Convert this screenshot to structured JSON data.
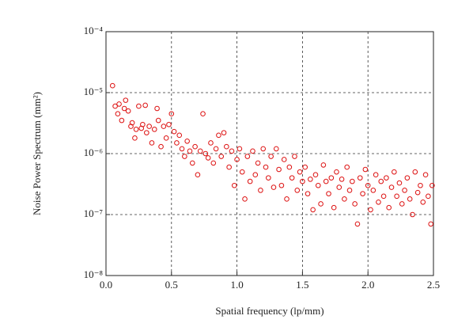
{
  "chart_data": {
    "type": "scatter",
    "xlabel": "Spatial frequency (lp/mm)",
    "ylabel": "Noise Power Spectrum (mm²)",
    "log_y": true,
    "grid": true,
    "xlim": [
      0,
      2.5
    ],
    "ylim": [
      1e-08,
      0.0001
    ],
    "xticks": [
      {
        "value": 0,
        "label": "0.0"
      },
      0.5,
      {
        "value": 1,
        "label": "1.0"
      },
      1.5,
      {
        "value": 2,
        "label": "2.0"
      },
      2.5
    ],
    "yticks": [
      {
        "value": 1e-08,
        "label": "10⁻⁸"
      },
      {
        "value": 1e-07,
        "label": "10⁻⁷"
      },
      {
        "value": 1e-06,
        "label": "10⁻⁶"
      },
      {
        "value": 1e-05,
        "label": "10⁻⁵"
      },
      {
        "value": 0.0001,
        "label": "10⁻⁴"
      }
    ],
    "series": [
      {
        "color": "#dd1111",
        "x": [
          0.05,
          0.07,
          0.09,
          0.1,
          0.12,
          0.14,
          0.15,
          0.17,
          0.19,
          0.2,
          0.22,
          0.23,
          0.25,
          0.27,
          0.28,
          0.3,
          0.31,
          0.33,
          0.35,
          0.37,
          0.39,
          0.4,
          0.42,
          0.44,
          0.46,
          0.48,
          0.5,
          0.52,
          0.54,
          0.56,
          0.58,
          0.6,
          0.62,
          0.64,
          0.66,
          0.68,
          0.7,
          0.72,
          0.74,
          0.76,
          0.78,
          0.8,
          0.82,
          0.84,
          0.86,
          0.88,
          0.9,
          0.92,
          0.94,
          0.96,
          0.98,
          1.0,
          1.02,
          1.04,
          1.06,
          1.08,
          1.1,
          1.12,
          1.14,
          1.16,
          1.18,
          1.2,
          1.22,
          1.24,
          1.26,
          1.28,
          1.3,
          1.32,
          1.34,
          1.36,
          1.38,
          1.4,
          1.42,
          1.44,
          1.46,
          1.48,
          1.5,
          1.52,
          1.54,
          1.56,
          1.58,
          1.6,
          1.62,
          1.64,
          1.66,
          1.68,
          1.7,
          1.72,
          1.74,
          1.76,
          1.78,
          1.8,
          1.82,
          1.84,
          1.86,
          1.88,
          1.9,
          1.92,
          1.94,
          1.96,
          1.98,
          2.0,
          2.02,
          2.04,
          2.06,
          2.08,
          2.1,
          2.12,
          2.14,
          2.16,
          2.18,
          2.2,
          2.22,
          2.24,
          2.26,
          2.28,
          2.3,
          2.32,
          2.34,
          2.36,
          2.38,
          2.4,
          2.42,
          2.44,
          2.46,
          2.48,
          2.49
        ],
        "values": [
          1.3e-05,
          6e-06,
          4.5e-06,
          6.5e-06,
          3.5e-06,
          5.5e-06,
          7.5e-06,
          5e-06,
          2.8e-06,
          3.2e-06,
          1.8e-06,
          2.5e-06,
          6e-06,
          2.6e-06,
          3e-06,
          6.2e-06,
          2.2e-06,
          2.8e-06,
          1.5e-06,
          2.5e-06,
          5.5e-06,
          3.5e-06,
          1.3e-06,
          2.8e-06,
          1.8e-06,
          3e-06,
          4.5e-06,
          2.3e-06,
          1.5e-06,
          2e-06,
          1.2e-06,
          9e-07,
          1.6e-06,
          1.1e-06,
          7e-07,
          1.3e-06,
          4.5e-07,
          1.1e-06,
          4.5e-06,
          1e-06,
          8.5e-07,
          1.5e-06,
          7e-07,
          1.2e-06,
          2e-06,
          9e-07,
          2.2e-06,
          1.3e-06,
          6e-07,
          1.1e-06,
          3e-07,
          8e-07,
          1.2e-06,
          5e-07,
          1.8e-07,
          9e-07,
          3.5e-07,
          1.1e-06,
          4.5e-07,
          7e-07,
          2.5e-07,
          1.2e-06,
          6e-07,
          4e-07,
          9e-07,
          2.8e-07,
          1.2e-06,
          5.5e-07,
          3e-07,
          8e-07,
          1.8e-07,
          6e-07,
          4e-07,
          9e-07,
          2.5e-07,
          5e-07,
          3.5e-07,
          6e-07,
          2.2e-07,
          3.8e-07,
          1.2e-07,
          4.5e-07,
          3e-07,
          1.5e-07,
          6.5e-07,
          3.5e-07,
          2.2e-07,
          4e-07,
          1.3e-07,
          5e-07,
          2.8e-07,
          3.8e-07,
          1.8e-07,
          6e-07,
          2.5e-07,
          3.5e-07,
          1.5e-07,
          7e-08,
          4e-07,
          2.2e-07,
          5.5e-07,
          3e-07,
          1.2e-07,
          2.5e-07,
          4.5e-07,
          1.6e-07,
          3.5e-07,
          2e-07,
          4e-07,
          1.3e-07,
          2.8e-07,
          5e-07,
          2e-07,
          3.3e-07,
          1.5e-07,
          2.5e-07,
          4e-07,
          1.8e-07,
          1e-07,
          5e-07,
          2.3e-07,
          3e-07,
          1.6e-07,
          4.5e-07,
          2e-07,
          7e-08,
          3e-07
        ]
      }
    ]
  }
}
